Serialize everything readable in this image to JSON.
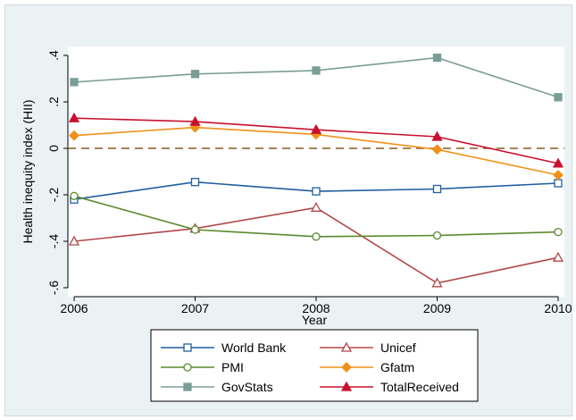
{
  "chart_data": {
    "type": "line",
    "title": "",
    "xlabel": "Year",
    "ylabel": "Health inequity index (HII)",
    "x": [
      2006,
      2007,
      2008,
      2009,
      2010
    ],
    "x_tick_labels": [
      "2006",
      "2007",
      "2008",
      "2009",
      "2010"
    ],
    "xlim": [
      2006,
      2010
    ],
    "ylim": [
      -0.6,
      0.4
    ],
    "y_ticks": [
      -0.6,
      -0.4,
      -0.2,
      0,
      0.2,
      0.4
    ],
    "y_tick_labels": [
      "-.6",
      "-.4",
      "-.2",
      "0",
      ".2",
      ".4"
    ],
    "reference_line": {
      "y": 0,
      "style": "dashed",
      "color": "#8a5a1e"
    },
    "grid": false,
    "legend_position": "bottom",
    "series": [
      {
        "name": "World Bank",
        "color": "#1f5f9f",
        "marker": "hollow-square",
        "values": [
          -0.22,
          -0.145,
          -0.185,
          -0.175,
          -0.15
        ]
      },
      {
        "name": "Unicef",
        "color": "#b0484a",
        "marker": "hollow-triangle",
        "values": [
          -0.4,
          -0.345,
          -0.255,
          -0.58,
          -0.47
        ]
      },
      {
        "name": "PMI",
        "color": "#5a8a2e",
        "marker": "hollow-circle",
        "values": [
          -0.205,
          -0.35,
          -0.38,
          -0.375,
          -0.36
        ]
      },
      {
        "name": "Gfatm",
        "color": "#f0901a",
        "marker": "filled-diamond",
        "values": [
          0.055,
          0.09,
          0.06,
          -0.005,
          -0.115
        ]
      },
      {
        "name": "GovStats",
        "color": "#7a9e96",
        "marker": "filled-square",
        "values": [
          0.285,
          0.32,
          0.335,
          0.39,
          0.22
        ]
      },
      {
        "name": "TotalReceived",
        "color": "#c8102e",
        "marker": "filled-triangle",
        "values": [
          0.13,
          0.115,
          0.08,
          0.05,
          -0.065
        ]
      }
    ]
  }
}
